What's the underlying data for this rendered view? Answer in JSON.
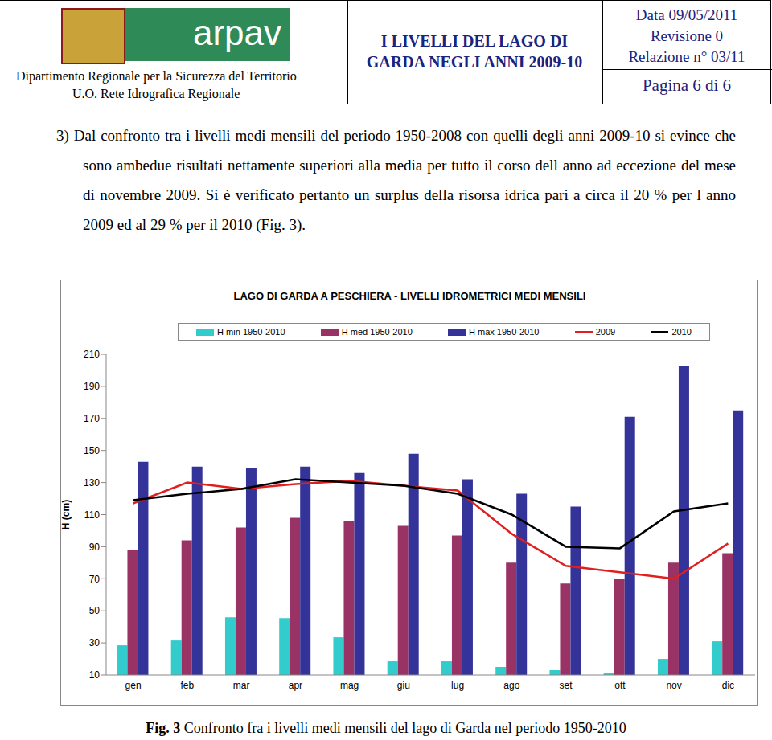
{
  "header": {
    "logo_text": "arpav",
    "department": "Dipartimento Regionale per la Sicurezza del Territorio",
    "unit": "U.O. Rete Idrografica Regionale",
    "title_lines": [
      "I LIVELLI DEL LAGO DI",
      "GARDA NEGLI ANNI 2009-10"
    ],
    "date": "Data 09/05/2011",
    "revision": "Revisione 0",
    "report": "Relazione n° 03/11",
    "page": "Pagina 6 di 6"
  },
  "body": {
    "paragraph": "3) Dal confronto tra i livelli medi mensili del periodo 1950-2008 con quelli degli anni 2009-10 si evince che sono ambedue risultati nettamente superiori alla media per tutto il corso dell anno ad eccezione del mese di novembre 2009. Si è verificato pertanto un surplus della risorsa idrica pari a circa il 20 % per l anno 2009 ed al 29 % per il 2010 (Fig. 3)."
  },
  "chart_data": {
    "type": "bar",
    "title": "LAGO DI GARDA A PESCHIERA - LIVELLI IDROMETRICI MEDI MENSILI",
    "y_label": "H (cm)",
    "categories": [
      "gen",
      "feb",
      "mar",
      "apr",
      "mag",
      "giu",
      "lug",
      "ago",
      "set",
      "ott",
      "nov",
      "dic"
    ],
    "series": [
      {
        "name": "H min 1950-2010",
        "type": "bar",
        "color": "#33CCCC",
        "values": [
          28.5,
          31.5,
          46,
          45.5,
          33.5,
          18.5,
          18.5,
          15,
          13,
          11.5,
          20,
          31
        ]
      },
      {
        "name": "H med 1950-2010",
        "type": "bar",
        "color": "#993366",
        "values": [
          88,
          94,
          102,
          108,
          106,
          103,
          97,
          80,
          67,
          70,
          80,
          86
        ]
      },
      {
        "name": "H max 1950-2010",
        "type": "bar",
        "color": "#333399",
        "values": [
          143,
          140,
          139,
          140,
          136,
          148,
          132,
          123,
          115,
          171,
          203,
          175
        ]
      },
      {
        "name": "2009",
        "type": "line",
        "color": "#E02020",
        "values": [
          117,
          130,
          126,
          129,
          131,
          128,
          125,
          98,
          78,
          74,
          70,
          92
        ]
      },
      {
        "name": "2010",
        "type": "line",
        "color": "#000000",
        "values": [
          119,
          123,
          126,
          132,
          130,
          128,
          123,
          110,
          90,
          89,
          112,
          117
        ]
      }
    ],
    "ylim": [
      10,
      210
    ],
    "yticks": [
      10,
      30,
      50,
      70,
      90,
      110,
      130,
      150,
      170,
      190,
      210
    ],
    "grid": false,
    "legend": "top"
  },
  "caption": {
    "label": "Fig. 3",
    "text": " Confronto fra i livelli medi mensili del lago di Garda nel periodo 1950-2010"
  }
}
